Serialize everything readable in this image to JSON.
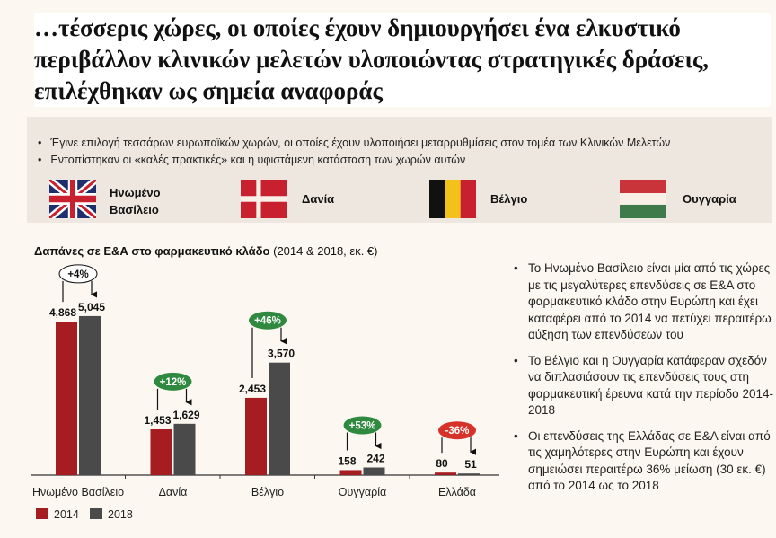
{
  "title": "…τέσσερις χώρες, οι οποίες έχουν δημιουργήσει ένα ελκυστικό περιβάλλον κλινικών μελετών υλοποιώντας στρατηγικές δράσεις, επιλέχθηκαν ως σημεία αναφοράς",
  "intro": {
    "bullets": [
      "Έγινε επιλογή τεσσάρων ευρωπαϊκών χωρών, οι οποίες έχουν υλοποιήσει μεταρρυθμίσεις  στον τομέα των Κλινικών Μελετών",
      "Εντοπίστηκαν οι «καλές πρακτικές» και η υφιστάμενη κατάσταση των χωρών αυτών"
    ],
    "countries": [
      {
        "label_1": "Ηνωμένο",
        "label_2": "Βασίλειο",
        "icon": "uk-flag-icon"
      },
      {
        "label": "Δανία",
        "icon": "denmark-flag-icon"
      },
      {
        "label": "Βέλγιο",
        "icon": "belgium-flag-icon"
      },
      {
        "label": "Ουγγαρία",
        "icon": "hungary-flag-icon"
      }
    ]
  },
  "chart_data": {
    "type": "bar",
    "title_bold": "Δαπάνες σε Ε&Α στο φαρμακευτικό κλάδο",
    "title_rest": " (2014 & 2018, εκ. €)",
    "categories": [
      "Ηνωμένο Βασίλειο",
      "Δανία",
      "Βέλγιο",
      "Ουγγαρία",
      "Ελλάδα"
    ],
    "series": [
      {
        "name": "2014",
        "color": "#a51d20",
        "values": [
          4868,
          1453,
          2453,
          158,
          80
        ],
        "labels": [
          "4,868",
          "1,453",
          "2,453",
          "158",
          "80"
        ]
      },
      {
        "name": "2018",
        "color": "#4a4a4a",
        "values": [
          5045,
          1629,
          3570,
          242,
          51
        ],
        "labels": [
          "5,045",
          "1,629",
          "3,570",
          "242",
          "51"
        ]
      }
    ],
    "changes": [
      {
        "text": "+4%",
        "style": "neutral"
      },
      {
        "text": "+12%",
        "style": "up"
      },
      {
        "text": "+46%",
        "style": "up"
      },
      {
        "text": "+53%",
        "style": "up"
      },
      {
        "text": "-36%",
        "style": "down"
      }
    ],
    "ylim": [
      0,
      5300
    ],
    "grid": false,
    "legend": "bottom-left"
  },
  "notes": [
    "Το Ηνωμένο Βασίλειο είναι μία από τις χώρες με τις μεγαλύτερες επενδύσεις σε Ε&Α στο φαρμακευτικό κλάδο στην Ευρώπη και έχει καταφέρει από το 2014 να πετύχει περαιτέρω αύξηση των επενδύσεων του",
    "Το Βέλγιο και η Ουγγαρία κατάφεραν σχεδόν να διπλασιάσουν τις επενδύσεις τους στη φαρμακευτική έρευνα κατά την περίοδο 2014-2018",
    "Οι επενδύσεις της Ελλάδας σε Ε&Α είναι από τις χαμηλότερες στην Ευρώπη και έχουν σημειώσει περαιτέρω 36% μείωση (30 εκ. €) από το 2014 ως το 2018"
  ]
}
